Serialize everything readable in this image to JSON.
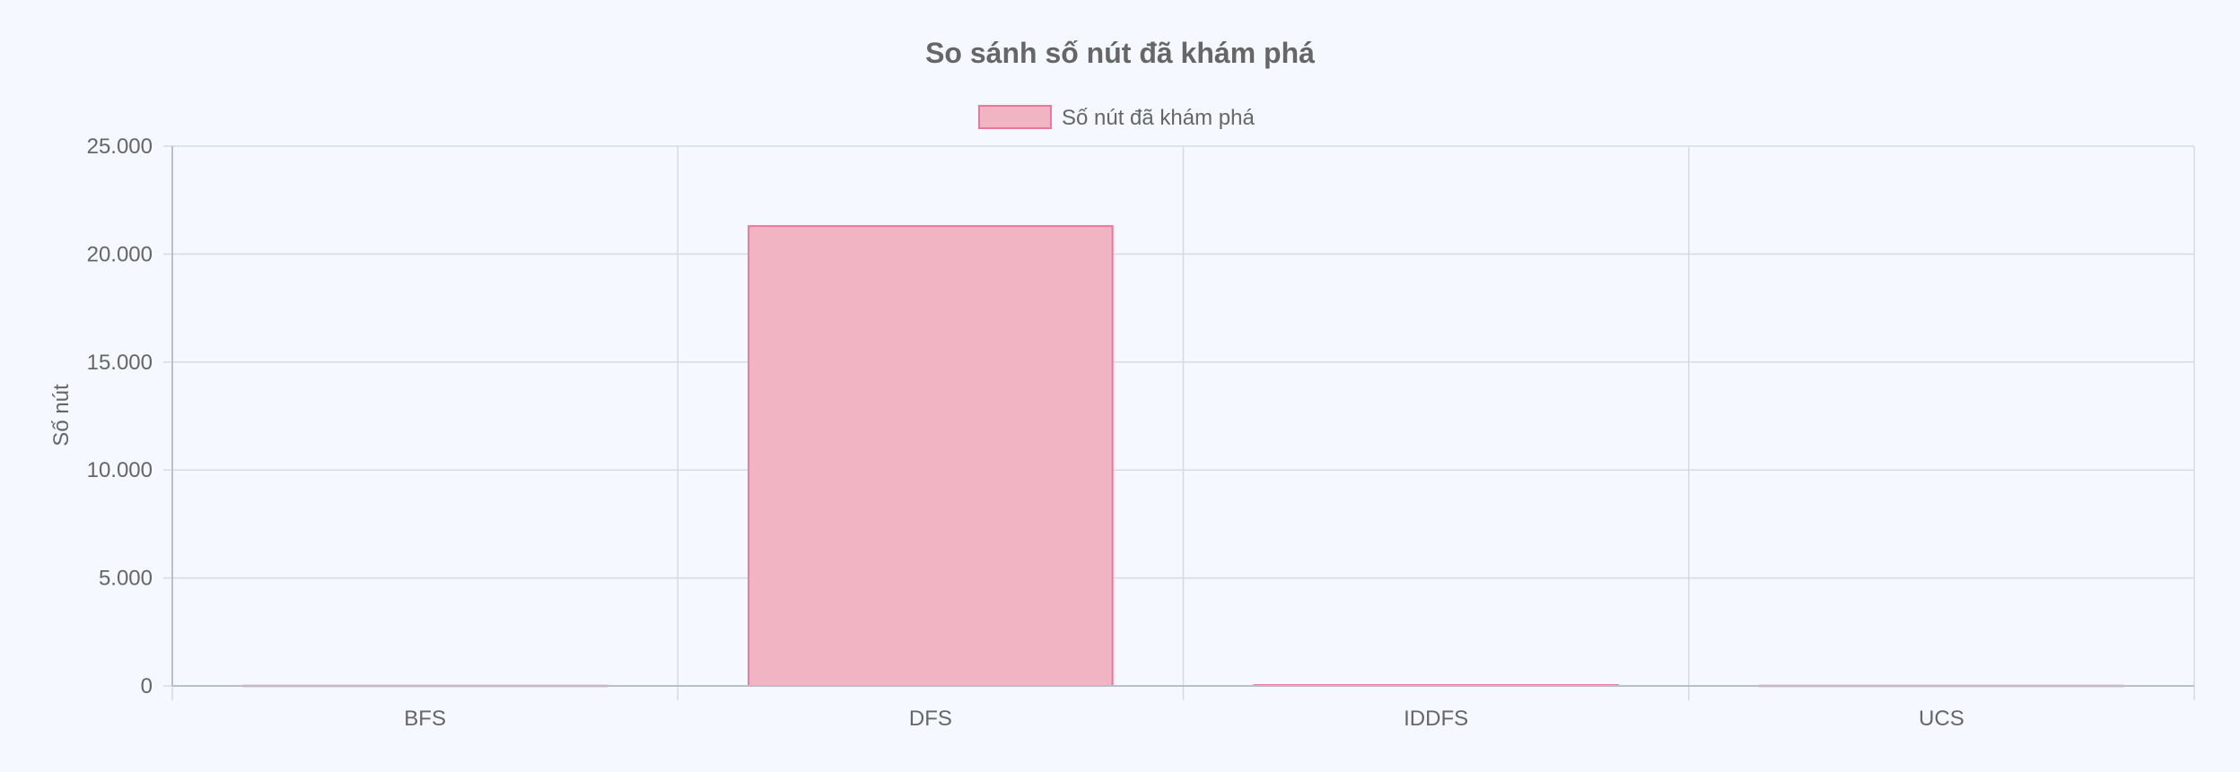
{
  "chart_data": {
    "type": "bar",
    "title": "So sánh số nút đã khám phá",
    "ylabel": "Số nút",
    "xlabel": "",
    "categories": [
      "BFS",
      "DFS",
      "IDDFS",
      "UCS"
    ],
    "series": [
      {
        "name": "Số nút đã khám phá",
        "values": [
          10,
          21300,
          40,
          10
        ]
      }
    ],
    "ylim": [
      0,
      25000
    ],
    "yticks": [
      0,
      5000,
      10000,
      15000,
      20000,
      25000
    ],
    "ytick_labels": [
      "0",
      "5.000",
      "10.000",
      "15.000",
      "20.000",
      "25.000"
    ],
    "grid": true,
    "legend_position": "top-center",
    "colors": {
      "bar_fill": "#f1b4c3",
      "bar_stroke": "#e8799a",
      "grid": "#d6dae3",
      "axis": "#b9bec9",
      "text": "#666666",
      "title": "#666666",
      "background": "#f5f8fe"
    }
  }
}
